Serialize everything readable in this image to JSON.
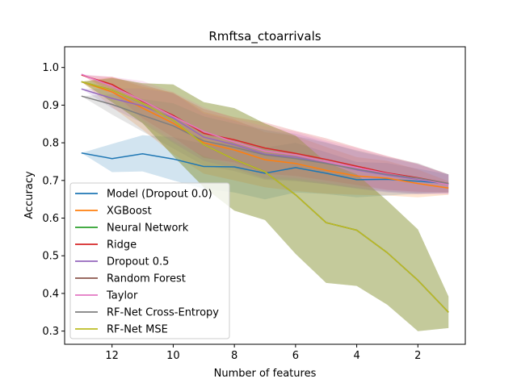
{
  "chart_data": {
    "type": "line",
    "title": "Rmftsa_ctoarrivals",
    "xlabel": "Number of features",
    "ylabel": "Accuracy",
    "x_inverted": true,
    "xlim": [
      13.55,
      0.45
    ],
    "ylim": [
      0.265,
      1.055
    ],
    "xticks": [
      12,
      10,
      8,
      6,
      4,
      2
    ],
    "yticks": [
      0.3,
      0.4,
      0.5,
      0.6,
      0.7,
      0.8,
      0.9,
      1.0
    ],
    "ytick_labels": [
      "0.3",
      "0.4",
      "0.5",
      "0.6",
      "0.7",
      "0.8",
      "0.9",
      "1.0"
    ],
    "grid": false,
    "legend_position": "lower-left",
    "x": [
      13,
      12,
      11,
      10,
      9,
      8,
      7,
      6,
      5,
      4,
      3,
      2,
      1
    ],
    "series": [
      {
        "name": "Model (Dropout 0.0)",
        "color": "#1f77b4",
        "values": [
          0.773,
          0.758,
          0.771,
          0.757,
          0.737,
          0.736,
          0.719,
          0.734,
          0.719,
          0.702,
          0.703,
          0.698,
          0.692
        ],
        "lower": [
          0.773,
          0.722,
          0.724,
          0.7,
          0.678,
          0.668,
          0.65,
          0.668,
          0.664,
          0.655,
          0.66,
          0.665,
          0.668
        ],
        "upper": [
          0.773,
          0.797,
          0.82,
          0.815,
          0.797,
          0.803,
          0.787,
          0.8,
          0.775,
          0.749,
          0.746,
          0.731,
          0.716
        ]
      },
      {
        "name": "XGBoost",
        "color": "#ff7f0e",
        "values": [
          0.962,
          0.935,
          0.892,
          0.852,
          0.8,
          0.781,
          0.755,
          0.745,
          0.727,
          0.712,
          0.706,
          0.692,
          0.68
        ],
        "lower": [
          0.962,
          0.895,
          0.835,
          0.77,
          0.718,
          0.7,
          0.682,
          0.672,
          0.665,
          0.662,
          0.66,
          0.655,
          0.662
        ],
        "upper": [
          0.962,
          0.975,
          0.949,
          0.934,
          0.882,
          0.862,
          0.828,
          0.818,
          0.789,
          0.762,
          0.752,
          0.729,
          0.698
        ]
      },
      {
        "name": "Neural Network",
        "color": "#2ca02c",
        "values": [
          0.962,
          0.94,
          0.905,
          0.86,
          0.795,
          0.756,
          0.723,
          0.662,
          0.588,
          0.568,
          0.508,
          0.435,
          0.35
        ],
        "lower": [
          0.962,
          0.908,
          0.852,
          0.765,
          0.682,
          0.62,
          0.595,
          0.505,
          0.428,
          0.42,
          0.37,
          0.3,
          0.308
        ],
        "upper": [
          0.962,
          0.972,
          0.958,
          0.955,
          0.908,
          0.892,
          0.851,
          0.819,
          0.748,
          0.716,
          0.646,
          0.57,
          0.392
        ]
      },
      {
        "name": "Ridge",
        "color": "#d62728",
        "values": [
          0.98,
          0.955,
          0.91,
          0.873,
          0.825,
          0.808,
          0.786,
          0.772,
          0.756,
          0.738,
          0.72,
          0.707,
          0.692
        ],
        "lower": [
          0.98,
          0.935,
          0.865,
          0.815,
          0.76,
          0.748,
          0.718,
          0.712,
          0.7,
          0.688,
          0.675,
          0.67,
          0.668
        ],
        "upper": [
          0.98,
          0.975,
          0.955,
          0.931,
          0.89,
          0.868,
          0.854,
          0.832,
          0.812,
          0.788,
          0.765,
          0.744,
          0.716
        ]
      },
      {
        "name": "Dropout 0.5",
        "color": "#9467bd",
        "values": [
          0.943,
          0.918,
          0.898,
          0.866,
          0.815,
          0.795,
          0.77,
          0.762,
          0.746,
          0.728,
          0.714,
          0.703,
          0.69
        ],
        "lower": [
          0.943,
          0.892,
          0.852,
          0.8,
          0.752,
          0.732,
          0.705,
          0.7,
          0.69,
          0.678,
          0.668,
          0.663,
          0.664
        ],
        "upper": [
          0.943,
          0.944,
          0.944,
          0.932,
          0.878,
          0.858,
          0.835,
          0.824,
          0.802,
          0.778,
          0.76,
          0.743,
          0.716
        ]
      },
      {
        "name": "Random Forest",
        "color": "#8c564b",
        "values": [
          0.962,
          0.94,
          0.905,
          0.86,
          0.795,
          0.756,
          0.723,
          0.662,
          0.588,
          0.568,
          0.508,
          0.435,
          0.35
        ],
        "lower": [
          0.962,
          0.908,
          0.852,
          0.765,
          0.682,
          0.62,
          0.595,
          0.505,
          0.428,
          0.42,
          0.37,
          0.3,
          0.308
        ],
        "upper": [
          0.962,
          0.972,
          0.958,
          0.955,
          0.908,
          0.892,
          0.851,
          0.819,
          0.748,
          0.716,
          0.646,
          0.57,
          0.392
        ]
      },
      {
        "name": "Taylor",
        "color": "#e377c2",
        "values": [
          0.982,
          0.95,
          0.912,
          0.87,
          0.83,
          0.802,
          0.778,
          0.768,
          0.75,
          0.734,
          0.718,
          0.705,
          0.689
        ],
        "lower": [
          0.982,
          0.925,
          0.86,
          0.805,
          0.765,
          0.74,
          0.712,
          0.706,
          0.694,
          0.682,
          0.672,
          0.666,
          0.664
        ],
        "upper": [
          0.982,
          0.975,
          0.964,
          0.935,
          0.895,
          0.864,
          0.844,
          0.83,
          0.806,
          0.786,
          0.764,
          0.744,
          0.714
        ]
      },
      {
        "name": "RF-Net Cross-Entropy",
        "color": "#7f7f7f",
        "values": [
          0.924,
          0.902,
          0.873,
          0.845,
          0.805,
          0.788,
          0.768,
          0.758,
          0.745,
          0.73,
          0.716,
          0.706,
          0.692
        ],
        "lower": [
          0.924,
          0.875,
          0.83,
          0.785,
          0.74,
          0.725,
          0.702,
          0.698,
          0.69,
          0.68,
          0.67,
          0.666,
          0.668
        ],
        "upper": [
          0.924,
          0.929,
          0.916,
          0.905,
          0.87,
          0.851,
          0.834,
          0.818,
          0.8,
          0.78,
          0.762,
          0.746,
          0.716
        ]
      },
      {
        "name": "RF-Net MSE",
        "color": "#bcbd22",
        "values": [
          0.962,
          0.94,
          0.905,
          0.86,
          0.795,
          0.756,
          0.723,
          0.662,
          0.588,
          0.568,
          0.508,
          0.435,
          0.35
        ],
        "lower": [
          0.962,
          0.908,
          0.852,
          0.765,
          0.682,
          0.62,
          0.595,
          0.505,
          0.428,
          0.42,
          0.37,
          0.3,
          0.308
        ],
        "upper": [
          0.962,
          0.972,
          0.958,
          0.955,
          0.908,
          0.892,
          0.851,
          0.819,
          0.748,
          0.716,
          0.646,
          0.57,
          0.392
        ]
      }
    ]
  }
}
